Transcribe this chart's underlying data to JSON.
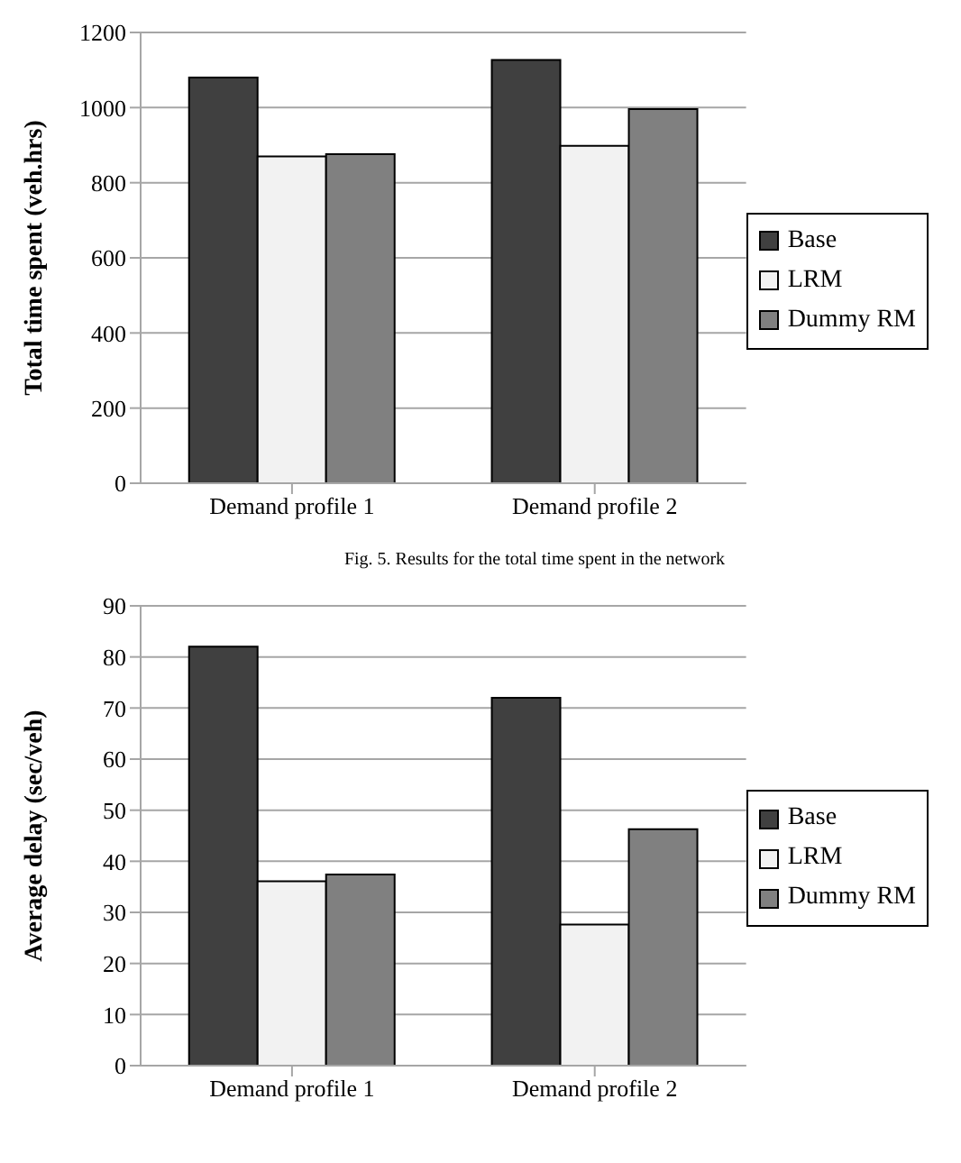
{
  "chart_data": [
    {
      "type": "bar",
      "categories": [
        "Demand profile 1",
        "Demand profile 2"
      ],
      "ylabel": "Total time spent (veh.hrs)",
      "ylim": [
        0,
        1200
      ],
      "yticks": [
        0,
        200,
        400,
        600,
        800,
        1000,
        1200
      ],
      "grid": "y",
      "legend": "right",
      "series": [
        {
          "name": "Base",
          "color": "#404040",
          "values": [
            1080,
            1127
          ]
        },
        {
          "name": "LRM",
          "color": "#f2f2f2",
          "values": [
            870,
            898
          ]
        },
        {
          "name": "Dummy RM",
          "color": "#808080",
          "values": [
            876,
            996
          ]
        }
      ],
      "annotations": [
        "Fig. 5. Results for the total time spent in the network"
      ]
    },
    {
      "type": "bar",
      "categories": [
        "Demand profile 1",
        "Demand profile 2"
      ],
      "ylabel": "Average delay (sec/veh)",
      "ylim": [
        0,
        90
      ],
      "yticks": [
        0,
        10,
        20,
        30,
        40,
        50,
        60,
        70,
        80,
        90
      ],
      "grid": "y",
      "legend": "right",
      "series": [
        {
          "name": "Base",
          "color": "#404040",
          "values": [
            82,
            72
          ]
        },
        {
          "name": "LRM",
          "color": "#f2f2f2",
          "values": [
            36.1,
            27.6
          ]
        },
        {
          "name": "Dummy RM",
          "color": "#808080",
          "values": [
            37.4,
            46.3
          ]
        }
      ]
    }
  ]
}
